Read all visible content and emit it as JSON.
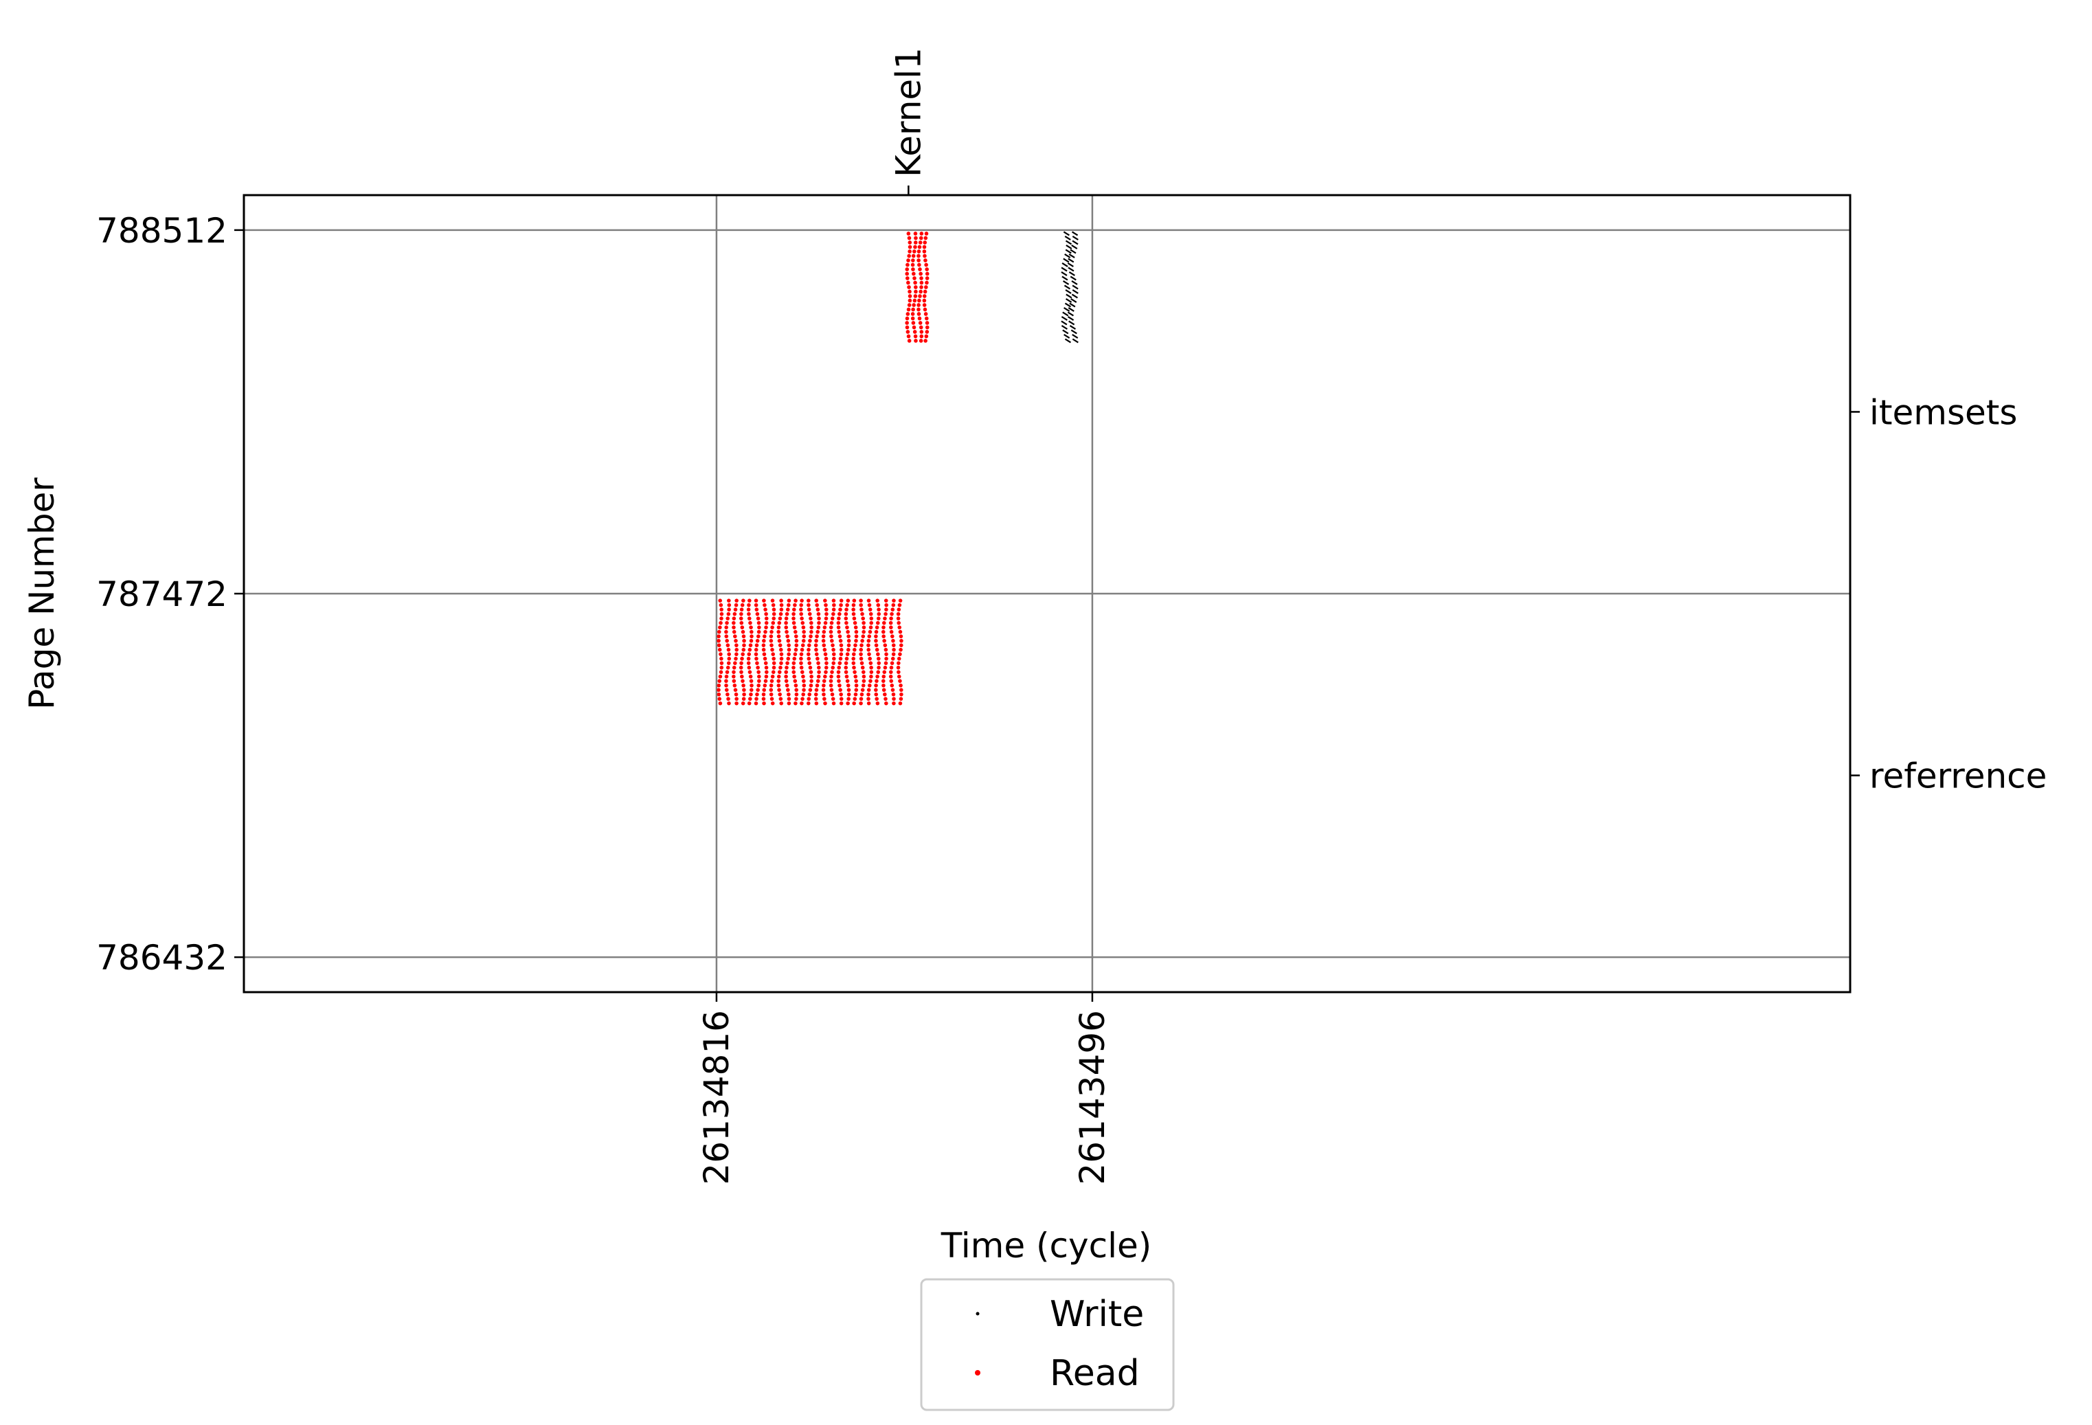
{
  "chart_data": {
    "type": "scatter",
    "title": "",
    "xlabel": "Time (cycle)",
    "ylabel": "Page Number",
    "xlim": [
      26123900,
      26161000
    ],
    "ylim": [
      786332,
      788612
    ],
    "x_ticks": [
      "26134816",
      "26143496"
    ],
    "y_ticks": [
      "786432",
      "787472",
      "788512"
    ],
    "top_ticks": [
      {
        "label": "Kernel1",
        "x": 26139250
      }
    ],
    "right_ticks": [
      {
        "label": "itemsets",
        "y": 787992
      },
      {
        "label": "referrence",
        "y": 786952
      }
    ],
    "grid": true,
    "legend": {
      "placement": "below",
      "entries": [
        {
          "name": "Write",
          "color": "#000000"
        },
        {
          "name": "Read",
          "color": "#ff0000"
        }
      ]
    },
    "series": [
      {
        "name": "Read",
        "color": "#ff0000",
        "clusters": [
          {
            "x_start": 26134900,
            "x_end": 26139050,
            "columns": 25,
            "y_low": 787148,
            "y_high": 787452
          },
          {
            "x_start": 26139250,
            "x_end": 26139650,
            "columns": 4,
            "y_low": 788192,
            "y_high": 788502
          }
        ]
      },
      {
        "name": "Write",
        "color": "#000000",
        "clusters": [
          {
            "x_start": 26142900,
            "x_end": 26143050,
            "columns": 2,
            "y_low": 788192,
            "y_high": 788502
          }
        ]
      }
    ]
  }
}
